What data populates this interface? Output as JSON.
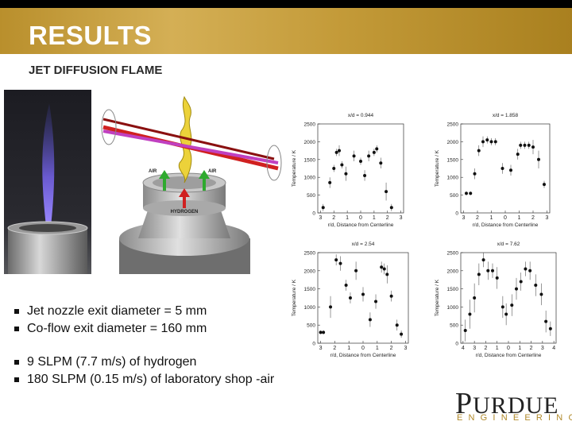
{
  "header": {
    "title": "RESULTS",
    "subtitle": "JET DIFFUSION FLAME"
  },
  "figure": {
    "left_label": "AIR",
    "right_label": "AIR",
    "center_label": "HYDROGEN"
  },
  "bullets": [
    "Jet nozzle exit diameter = 5 mm",
    "Co-flow exit diameter = 160 mm",
    "9 SLPM (7.7 m/s) of hydrogen",
    "180 SLPM (0.15 m/s) of laboratory shop -air"
  ],
  "logo": {
    "name": "PURDUE",
    "tagline": "ENGINEERING"
  },
  "chart_data": [
    {
      "type": "scatter",
      "title": "x/d = 0.944",
      "xlabel": "r/d, Distance from Centerline",
      "ylabel": "Temperature / K",
      "color": "#111111",
      "x": [
        -2.8,
        -2.3,
        -2.0,
        -1.8,
        -1.6,
        -1.4,
        -1.1,
        -0.5,
        0.0,
        0.3,
        0.6,
        1.0,
        1.2,
        1.5,
        1.9,
        2.3
      ],
      "values": [
        150,
        850,
        1250,
        1700,
        1750,
        1350,
        1100,
        1600,
        1450,
        1050,
        1600,
        1700,
        1800,
        1400,
        600,
        150
      ],
      "errors": [
        100,
        150,
        100,
        100,
        150,
        100,
        200,
        150,
        100,
        150,
        150,
        100,
        100,
        150,
        250,
        100
      ],
      "xlim": [
        -3.2,
        3.2
      ],
      "ylim": [
        0,
        2500
      ],
      "xticks": [
        {
          "value": -3,
          "label": "3"
        },
        {
          "value": -2,
          "label": "2"
        },
        {
          "value": -1,
          "label": "1"
        },
        0,
        1,
        2,
        3
      ],
      "yticks": [
        0,
        500,
        1000,
        1500,
        2000,
        2500
      ]
    },
    {
      "type": "scatter",
      "title": "x/d = 1.858",
      "xlabel": "r/d, Distance from Centerline",
      "ylabel": "Temperature / K",
      "color": "#111111",
      "x": [
        -2.8,
        -2.5,
        -2.2,
        -1.9,
        -1.6,
        -1.3,
        -1.0,
        -0.7,
        -0.2,
        0.4,
        0.9,
        1.1,
        1.4,
        1.7,
        2.0,
        2.4,
        2.8
      ],
      "values": [
        550,
        550,
        1100,
        1750,
        2000,
        2050,
        2000,
        2000,
        1250,
        1200,
        1650,
        1900,
        1900,
        1900,
        1850,
        1500,
        800
      ],
      "errors": [
        50,
        50,
        150,
        150,
        150,
        100,
        100,
        100,
        150,
        150,
        150,
        100,
        100,
        100,
        200,
        250,
        100
      ],
      "xlim": [
        -3.2,
        3.2
      ],
      "ylim": [
        0,
        2500
      ],
      "xticks": [
        {
          "value": -3,
          "label": "3"
        },
        {
          "value": -2,
          "label": "2"
        },
        {
          "value": -1,
          "label": "1"
        },
        0,
        1,
        2,
        3
      ],
      "yticks": [
        0,
        500,
        1000,
        1500,
        2000,
        2500
      ]
    },
    {
      "type": "scatter",
      "title": "x/d = 2.54",
      "xlabel": "r/d, Distance from Centerline",
      "ylabel": "Temperature / K",
      "color": "#111111",
      "x": [
        -3.0,
        -2.8,
        -2.3,
        -1.9,
        -1.6,
        -1.2,
        -0.9,
        -0.5,
        0.0,
        0.5,
        0.9,
        1.3,
        1.5,
        1.7,
        2.0,
        2.4,
        2.7
      ],
      "values": [
        300,
        300,
        1000,
        2300,
        2200,
        1600,
        1250,
        2000,
        1350,
        650,
        1150,
        2100,
        2050,
        1900,
        1300,
        500,
        250
      ],
      "errors": [
        50,
        50,
        300,
        150,
        200,
        150,
        150,
        250,
        200,
        200,
        200,
        150,
        150,
        250,
        150,
        150,
        100
      ],
      "xlim": [
        -3.2,
        3.2
      ],
      "ylim": [
        0,
        2500
      ],
      "xticks": [
        {
          "value": -3,
          "label": "3"
        },
        {
          "value": -2,
          "label": "2"
        },
        {
          "value": -1,
          "label": "1"
        },
        0,
        1,
        2,
        3
      ],
      "yticks": [
        0,
        500,
        1000,
        1500,
        2000,
        2500
      ]
    },
    {
      "type": "scatter",
      "title": "x/d = 7.62",
      "xlabel": "r/d, Distance from Centerline",
      "ylabel": "Temperature / K",
      "color": "#111111",
      "x": [
        -3.8,
        -3.4,
        -3.0,
        -2.6,
        -2.2,
        -1.8,
        -1.4,
        -1.0,
        -0.5,
        -0.2,
        0.3,
        0.7,
        1.1,
        1.5,
        1.9,
        2.4,
        2.9,
        3.3,
        3.7
      ],
      "values": [
        350,
        800,
        1250,
        1900,
        2300,
        2000,
        2000,
        1800,
        1000,
        800,
        1050,
        1500,
        1700,
        2050,
        2000,
        1600,
        1350,
        600,
        400
      ],
      "errors": [
        300,
        400,
        400,
        300,
        200,
        250,
        200,
        300,
        300,
        300,
        300,
        300,
        250,
        200,
        250,
        300,
        300,
        300,
        200
      ],
      "xlim": [
        -4.2,
        4.2
      ],
      "ylim": [
        0,
        2500
      ],
      "xticks": [
        {
          "value": -4,
          "label": "4"
        },
        {
          "value": -3,
          "label": "3"
        },
        {
          "value": -2,
          "label": "2"
        },
        {
          "value": -1,
          "label": "1"
        },
        0,
        1,
        2,
        3,
        4
      ],
      "yticks": [
        0,
        500,
        1000,
        1500,
        2000,
        2500
      ]
    }
  ]
}
